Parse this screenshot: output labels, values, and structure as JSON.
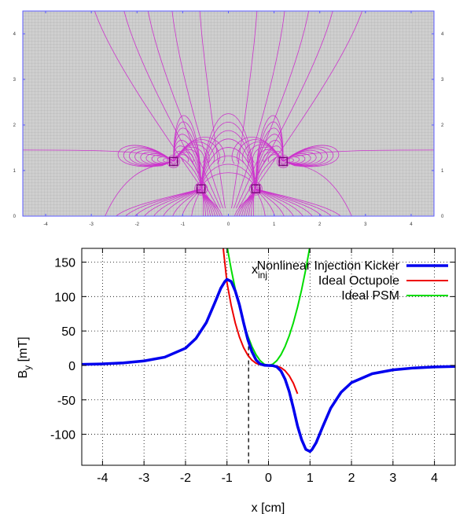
{
  "chart_data": [
    {
      "type": "contour",
      "title": "",
      "xlabel": "",
      "ylabel": "",
      "xlim": [
        -4.5,
        4.5
      ],
      "ylim": [
        0,
        4.5
      ],
      "x_ticks": [
        "-4",
        "-3",
        "-2",
        "-1",
        "0",
        "1",
        "2",
        "3",
        "4"
      ],
      "x_tick_values": [
        -4,
        -3,
        -2,
        -1,
        0,
        1,
        2,
        3,
        4
      ],
      "y_ticks": [
        "0",
        "1",
        "2",
        "3",
        "4"
      ],
      "y_tick_values": [
        0,
        1,
        2,
        3,
        4
      ],
      "background_color": "#c8c8c8",
      "line_color": "#cc33cc",
      "conductors": [
        {
          "x": -1.2,
          "y": 1.2
        },
        {
          "x": 1.2,
          "y": 1.2
        },
        {
          "x": -0.6,
          "y": 0.6
        },
        {
          "x": 0.6,
          "y": 0.6
        }
      ]
    },
    {
      "type": "line",
      "title": "",
      "xlabel": "x [cm]",
      "ylabel": "B_y [mT]",
      "ylabel_main": "B",
      "ylabel_sub": "y",
      "ylabel_tail": " [mT]",
      "xlim": [
        -4.5,
        4.5
      ],
      "ylim": [
        -145,
        170
      ],
      "x_ticks": [
        "-4",
        "-3",
        "-2",
        "-1",
        "0",
        "1",
        "2",
        "3",
        "4"
      ],
      "x_tick_values": [
        -4,
        -3,
        -2,
        -1,
        0,
        1,
        2,
        3,
        4
      ],
      "y_ticks": [
        "150",
        "100",
        "50",
        "0",
        "-50",
        "-100"
      ],
      "y_tick_values": [
        150,
        100,
        50,
        0,
        -50,
        -100
      ],
      "grid": true,
      "legend_position": "top-right",
      "annotation": {
        "main": "x",
        "sub": "inj",
        "x": -0.48
      },
      "series": [
        {
          "name": "Nonlinear Injection Kicker",
          "color": "#0000ee",
          "points": [
            [
              -4.5,
              1.5
            ],
            [
              -4.0,
              2.2
            ],
            [
              -3.5,
              3.7
            ],
            [
              -3.0,
              6.5
            ],
            [
              -2.5,
              12
            ],
            [
              -2.0,
              25
            ],
            [
              -1.75,
              39
            ],
            [
              -1.5,
              62
            ],
            [
              -1.3,
              90
            ],
            [
              -1.15,
              112
            ],
            [
              -1.05,
              122
            ],
            [
              -1.0,
              125
            ],
            [
              -0.9,
              122
            ],
            [
              -0.8,
              108
            ],
            [
              -0.7,
              88
            ],
            [
              -0.6,
              62
            ],
            [
              -0.5,
              38
            ],
            [
              -0.4,
              20
            ],
            [
              -0.3,
              8
            ],
            [
              -0.2,
              2
            ],
            [
              -0.1,
              0.3
            ],
            [
              0.0,
              0.0
            ],
            [
              0.1,
              -0.3
            ],
            [
              0.2,
              -2
            ],
            [
              0.3,
              -8
            ],
            [
              0.4,
              -20
            ],
            [
              0.5,
              -38
            ],
            [
              0.6,
              -62
            ],
            [
              0.7,
              -88
            ],
            [
              0.8,
              -108
            ],
            [
              0.9,
              -122
            ],
            [
              1.0,
              -125
            ],
            [
              1.05,
              -122
            ],
            [
              1.15,
              -112
            ],
            [
              1.3,
              -90
            ],
            [
              1.5,
              -62
            ],
            [
              1.75,
              -39
            ],
            [
              2.0,
              -25
            ],
            [
              2.5,
              -12
            ],
            [
              3.0,
              -6.5
            ],
            [
              3.5,
              -3.7
            ],
            [
              4.0,
              -2.2
            ],
            [
              4.5,
              -1.5
            ]
          ]
        },
        {
          "name": "Ideal Octupole",
          "color": "#ee0000",
          "points": [
            [
              -1.09,
              170
            ],
            [
              -1.0,
              120
            ],
            [
              -0.9,
              87.5
            ],
            [
              -0.8,
              61.4
            ],
            [
              -0.7,
              41.2
            ],
            [
              -0.6,
              25.9
            ],
            [
              -0.5,
              15
            ],
            [
              -0.4,
              7.7
            ],
            [
              -0.3,
              3.2
            ],
            [
              -0.2,
              0.96
            ],
            [
              -0.1,
              0.12
            ],
            [
              0.0,
              0.0
            ],
            [
              0.1,
              -0.12
            ],
            [
              0.2,
              -0.96
            ],
            [
              0.3,
              -3.2
            ],
            [
              0.4,
              -7.7
            ],
            [
              0.5,
              -15
            ],
            [
              0.6,
              -25.9
            ],
            [
              0.7,
              -41.2
            ]
          ]
        },
        {
          "name": "Ideal PSM",
          "color": "#00dd00",
          "points": [
            [
              -0.99,
              170
            ],
            [
              -0.9,
              140
            ],
            [
              -0.8,
              110.4
            ],
            [
              -0.7,
              84.5
            ],
            [
              -0.6,
              62.1
            ],
            [
              -0.5,
              43.1
            ],
            [
              -0.4,
              27.6
            ],
            [
              -0.3,
              15.5
            ],
            [
              -0.2,
              6.9
            ],
            [
              -0.1,
              1.7
            ],
            [
              0.0,
              0.0
            ],
            [
              0.1,
              1.7
            ],
            [
              0.2,
              6.9
            ],
            [
              0.3,
              15.5
            ],
            [
              0.4,
              27.6
            ],
            [
              0.5,
              43.1
            ],
            [
              0.6,
              62.1
            ],
            [
              0.7,
              84.5
            ],
            [
              0.8,
              110.4
            ],
            [
              0.9,
              140
            ],
            [
              0.99,
              170
            ]
          ]
        }
      ]
    }
  ]
}
